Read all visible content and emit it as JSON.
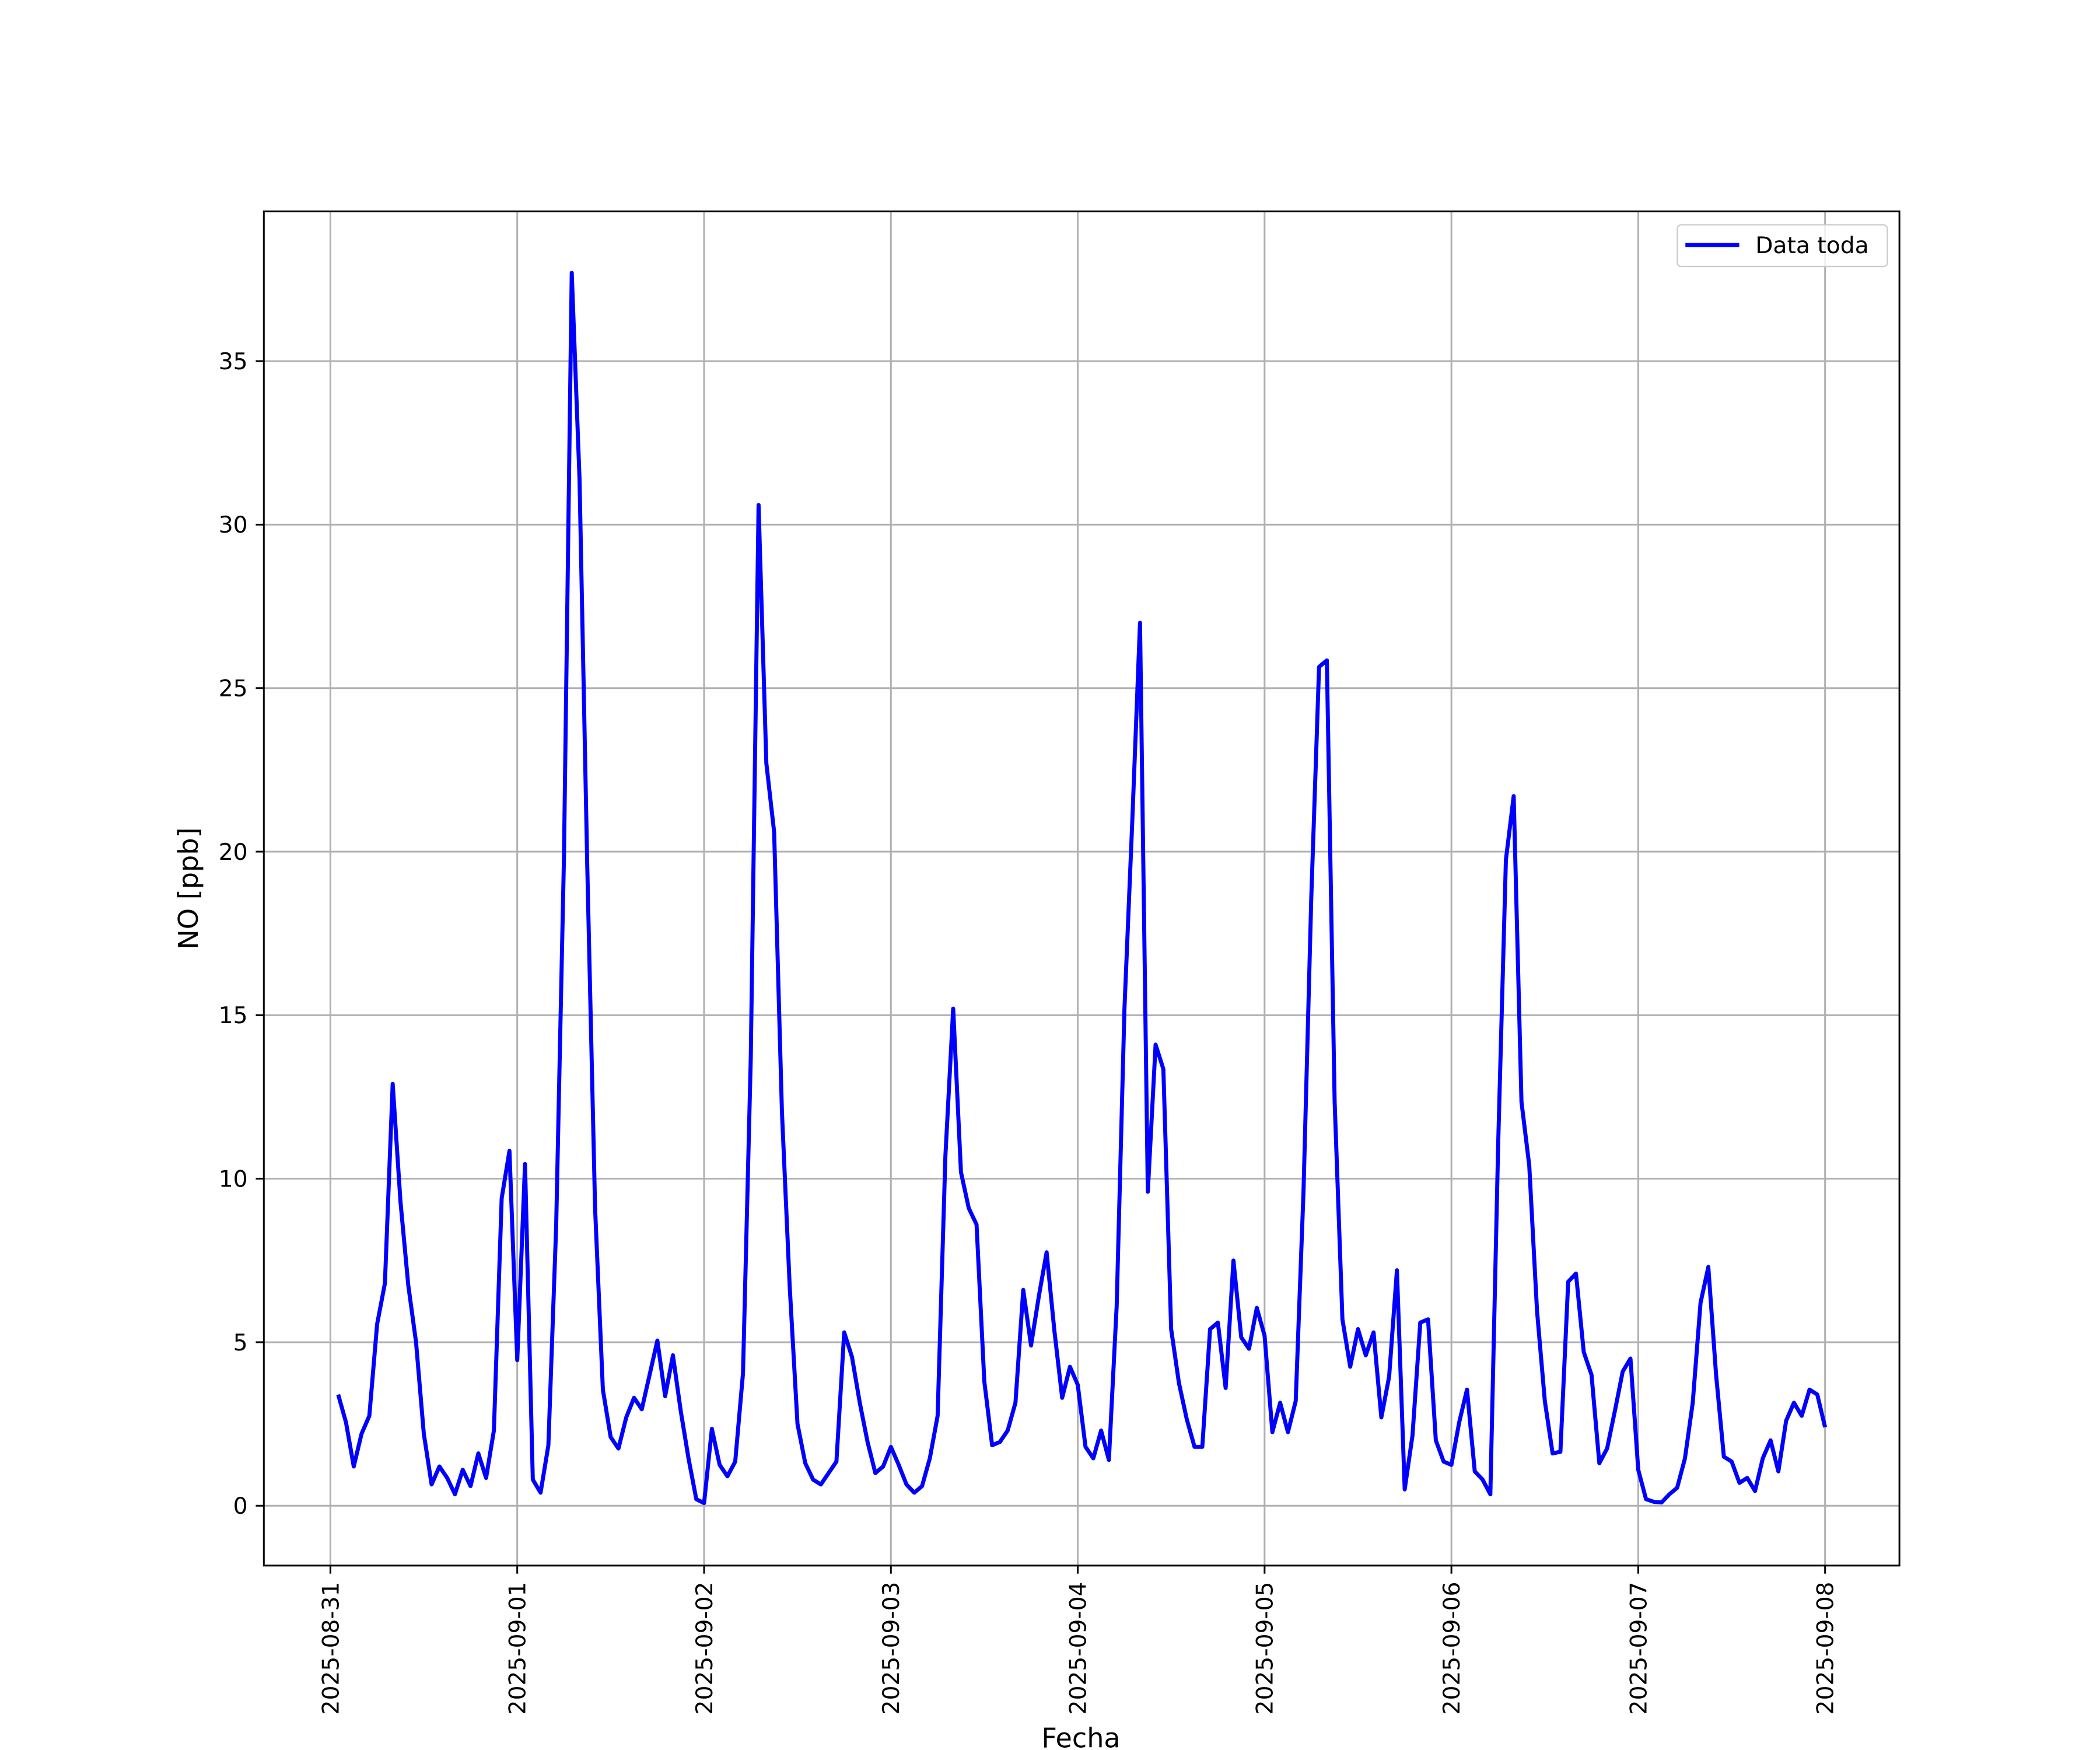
{
  "chart_data": {
    "type": "line",
    "xlabel": "Fecha",
    "ylabel": "NO [ppb]",
    "x": [
      "2025-08-31 01:00",
      "2025-08-31 02:00",
      "2025-08-31 03:00",
      "2025-08-31 04:00",
      "2025-08-31 05:00",
      "2025-08-31 06:00",
      "2025-08-31 07:00",
      "2025-08-31 08:00",
      "2025-08-31 09:00",
      "2025-08-31 10:00",
      "2025-08-31 11:00",
      "2025-08-31 12:00",
      "2025-08-31 13:00",
      "2025-08-31 14:00",
      "2025-08-31 15:00",
      "2025-08-31 16:00",
      "2025-08-31 17:00",
      "2025-08-31 18:00",
      "2025-08-31 19:00",
      "2025-08-31 20:00",
      "2025-08-31 21:00",
      "2025-08-31 22:00",
      "2025-08-31 23:00",
      "2025-09-01 00:00",
      "2025-09-01 01:00",
      "2025-09-01 02:00",
      "2025-09-01 03:00",
      "2025-09-01 04:00",
      "2025-09-01 05:00",
      "2025-09-01 06:00",
      "2025-09-01 07:00",
      "2025-09-01 08:00",
      "2025-09-01 09:00",
      "2025-09-01 10:00",
      "2025-09-01 11:00",
      "2025-09-01 12:00",
      "2025-09-01 13:00",
      "2025-09-01 14:00",
      "2025-09-01 15:00",
      "2025-09-01 16:00",
      "2025-09-01 17:00",
      "2025-09-01 18:00",
      "2025-09-01 19:00",
      "2025-09-01 20:00",
      "2025-09-01 21:00",
      "2025-09-01 22:00",
      "2025-09-01 23:00",
      "2025-09-02 00:00",
      "2025-09-02 01:00",
      "2025-09-02 02:00",
      "2025-09-02 03:00",
      "2025-09-02 04:00",
      "2025-09-02 05:00",
      "2025-09-02 06:00",
      "2025-09-02 07:00",
      "2025-09-02 08:00",
      "2025-09-02 09:00",
      "2025-09-02 10:00",
      "2025-09-02 11:00",
      "2025-09-02 12:00",
      "2025-09-02 13:00",
      "2025-09-02 14:00",
      "2025-09-02 15:00",
      "2025-09-02 16:00",
      "2025-09-02 17:00",
      "2025-09-02 18:00",
      "2025-09-02 19:00",
      "2025-09-02 20:00",
      "2025-09-02 21:00",
      "2025-09-02 22:00",
      "2025-09-02 23:00",
      "2025-09-03 00:00",
      "2025-09-03 01:00",
      "2025-09-03 02:00",
      "2025-09-03 03:00",
      "2025-09-03 04:00",
      "2025-09-03 05:00",
      "2025-09-03 06:00",
      "2025-09-03 07:00",
      "2025-09-03 08:00",
      "2025-09-03 09:00",
      "2025-09-03 10:00",
      "2025-09-03 11:00",
      "2025-09-03 12:00",
      "2025-09-03 13:00",
      "2025-09-03 14:00",
      "2025-09-03 15:00",
      "2025-09-03 16:00",
      "2025-09-03 17:00",
      "2025-09-03 18:00",
      "2025-09-03 19:00",
      "2025-09-03 20:00",
      "2025-09-03 21:00",
      "2025-09-03 22:00",
      "2025-09-03 23:00",
      "2025-09-04 00:00",
      "2025-09-04 01:00",
      "2025-09-04 02:00",
      "2025-09-04 03:00",
      "2025-09-04 04:00",
      "2025-09-04 05:00",
      "2025-09-04 06:00",
      "2025-09-04 07:00",
      "2025-09-04 08:00",
      "2025-09-04 09:00",
      "2025-09-04 10:00",
      "2025-09-04 11:00",
      "2025-09-04 12:00",
      "2025-09-04 13:00",
      "2025-09-04 14:00",
      "2025-09-04 15:00",
      "2025-09-04 16:00",
      "2025-09-04 17:00",
      "2025-09-04 18:00",
      "2025-09-04 19:00",
      "2025-09-04 20:00",
      "2025-09-04 21:00",
      "2025-09-04 22:00",
      "2025-09-04 23:00",
      "2025-09-05 00:00",
      "2025-09-05 01:00",
      "2025-09-05 02:00",
      "2025-09-05 03:00",
      "2025-09-05 04:00",
      "2025-09-05 05:00",
      "2025-09-05 06:00",
      "2025-09-05 07:00",
      "2025-09-05 08:00",
      "2025-09-05 09:00",
      "2025-09-05 10:00",
      "2025-09-05 11:00",
      "2025-09-05 12:00",
      "2025-09-05 13:00",
      "2025-09-05 14:00",
      "2025-09-05 15:00",
      "2025-09-05 16:00",
      "2025-09-05 17:00",
      "2025-09-05 18:00",
      "2025-09-05 19:00",
      "2025-09-05 20:00",
      "2025-09-05 21:00",
      "2025-09-05 22:00",
      "2025-09-05 23:00",
      "2025-09-06 00:00",
      "2025-09-06 01:00",
      "2025-09-06 02:00",
      "2025-09-06 03:00",
      "2025-09-06 04:00",
      "2025-09-06 05:00",
      "2025-09-06 06:00",
      "2025-09-06 07:00",
      "2025-09-06 08:00",
      "2025-09-06 09:00",
      "2025-09-06 10:00",
      "2025-09-06 11:00",
      "2025-09-06 12:00",
      "2025-09-06 13:00",
      "2025-09-06 14:00",
      "2025-09-06 15:00",
      "2025-09-06 16:00",
      "2025-09-06 17:00",
      "2025-09-06 18:00",
      "2025-09-06 19:00",
      "2025-09-06 20:00",
      "2025-09-06 21:00",
      "2025-09-06 22:00",
      "2025-09-06 23:00",
      "2025-09-07 00:00",
      "2025-09-07 01:00",
      "2025-09-07 02:00",
      "2025-09-07 03:00",
      "2025-09-07 04:00",
      "2025-09-07 05:00",
      "2025-09-07 06:00",
      "2025-09-07 07:00",
      "2025-09-07 08:00",
      "2025-09-07 09:00",
      "2025-09-07 10:00",
      "2025-09-07 11:00",
      "2025-09-07 12:00",
      "2025-09-07 13:00",
      "2025-09-07 14:00",
      "2025-09-07 15:00",
      "2025-09-07 16:00",
      "2025-09-07 17:00",
      "2025-09-07 18:00",
      "2025-09-07 19:00",
      "2025-09-07 20:00",
      "2025-09-07 21:00",
      "2025-09-07 22:00",
      "2025-09-07 23:00",
      "2025-09-08 00:00"
    ],
    "series": [
      {
        "name": "Data toda",
        "color": "#0000ff",
        "values": [
          3.4,
          2.55,
          1.2,
          2.2,
          2.75,
          5.55,
          6.8,
          12.9,
          9.3,
          6.75,
          5.0,
          2.2,
          0.65,
          1.2,
          0.85,
          0.35,
          1.1,
          0.6,
          1.6,
          0.85,
          2.3,
          9.4,
          10.85,
          4.45,
          10.45,
          0.8,
          0.4,
          1.85,
          8.55,
          19.8,
          37.7,
          31.4,
          19.5,
          9.1,
          3.55,
          2.1,
          1.75,
          2.7,
          3.3,
          2.95,
          4.0,
          5.05,
          3.35,
          4.6,
          2.9,
          1.45,
          0.2,
          0.08,
          2.35,
          1.25,
          0.9,
          1.35,
          4.05,
          13.7,
          30.6,
          22.7,
          20.6,
          12.05,
          6.7,
          2.5,
          1.3,
          0.8,
          0.65,
          1.0,
          1.35,
          5.3,
          4.55,
          3.15,
          1.95,
          1.0,
          1.2,
          1.8,
          1.25,
          0.65,
          0.4,
          0.6,
          1.45,
          2.75,
          10.7,
          15.2,
          10.2,
          9.1,
          8.6,
          3.8,
          1.85,
          1.95,
          2.3,
          3.15,
          6.6,
          4.9,
          6.4,
          7.75,
          5.35,
          3.3,
          4.25,
          3.7,
          1.8,
          1.45,
          2.3,
          1.4,
          6.1,
          15.2,
          20.9,
          27.0,
          9.6,
          14.1,
          13.35,
          5.4,
          3.75,
          2.65,
          1.8,
          1.8,
          5.4,
          5.6,
          3.6,
          7.5,
          5.15,
          4.8,
          6.05,
          5.2,
          2.25,
          3.15,
          2.25,
          3.2,
          9.6,
          18.6,
          25.65,
          25.85,
          12.35,
          5.7,
          4.25,
          5.4,
          4.6,
          5.3,
          2.7,
          3.95,
          7.2,
          0.5,
          2.15,
          5.6,
          5.7,
          2.0,
          1.35,
          1.25,
          2.55,
          3.55,
          1.05,
          0.8,
          0.35,
          11.0,
          19.75,
          21.7,
          12.35,
          10.4,
          5.95,
          3.2,
          1.6,
          1.65,
          6.85,
          7.1,
          4.7,
          4.0,
          1.3,
          1.75,
          2.9,
          4.1,
          4.5,
          1.1,
          0.2,
          0.12,
          0.1,
          0.35,
          0.55,
          1.45,
          3.15,
          6.2,
          7.3,
          4.0,
          1.5,
          1.35,
          0.7,
          0.85,
          0.45,
          1.45,
          2.0,
          1.05,
          2.6,
          3.15,
          2.75,
          3.55,
          3.4,
          2.4
        ]
      }
    ],
    "xlim": [
      "2025-08-30 15:27",
      "2025-09-08 09:33"
    ],
    "xticks": [
      "2025-08-31",
      "2025-09-01",
      "2025-09-02",
      "2025-09-03",
      "2025-09-04",
      "2025-09-05",
      "2025-09-06",
      "2025-09-07",
      "2025-09-08"
    ],
    "ylim": [
      -1.83,
      39.58
    ],
    "yticks": [
      0,
      5,
      10,
      15,
      20,
      25,
      30,
      35
    ],
    "grid": true,
    "legend": "upper right"
  }
}
